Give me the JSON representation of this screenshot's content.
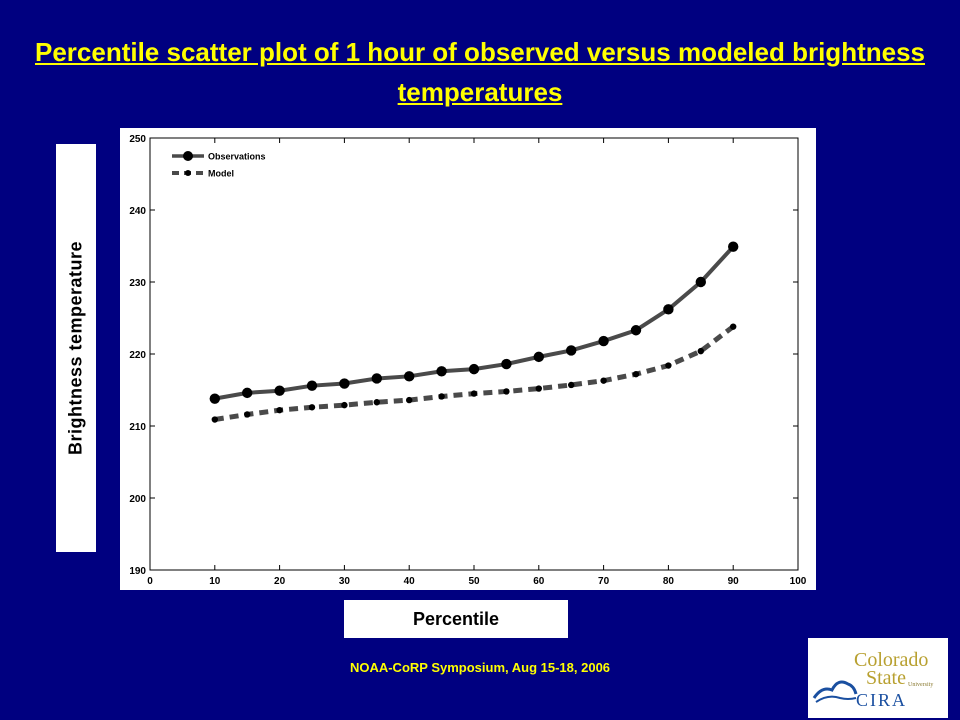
{
  "slide": {
    "title": "Percentile scatter plot of 1 hour of observed versus modeled brightness temperatures",
    "ylabel": "Brightness temperature",
    "xlabel": "Percentile",
    "footer": "NOAA-CoRP Symposium, Aug 15-18, 2006",
    "logo": {
      "colorado": "Colorado",
      "state": "State",
      "university": "University",
      "cira": "CIRA"
    }
  },
  "colors": {
    "background": "#000080",
    "title": "#ffff00",
    "footer": "#ffff00",
    "observations_line": "#4a4a4a",
    "model_line": "#4a4a4a",
    "markers": "#000000"
  },
  "chart_data": {
    "type": "line",
    "title": "",
    "xlabel": "",
    "ylabel": "",
    "xlim": [
      0,
      100
    ],
    "ylim": [
      190,
      250
    ],
    "xticks": [
      0,
      10,
      20,
      30,
      40,
      50,
      60,
      70,
      80,
      90,
      100
    ],
    "yticks": [
      190,
      200,
      210,
      220,
      230,
      240,
      250
    ],
    "grid": false,
    "legend_position": "top-left",
    "x": [
      10,
      15,
      20,
      25,
      30,
      35,
      40,
      45,
      50,
      55,
      60,
      65,
      70,
      75,
      80,
      85,
      90
    ],
    "series": [
      {
        "name": "Observations",
        "style": "solid",
        "values": [
          213.8,
          214.6,
          214.9,
          215.6,
          215.9,
          216.6,
          216.9,
          217.6,
          217.9,
          218.6,
          219.6,
          220.5,
          221.8,
          223.3,
          226.2,
          230.0,
          234.9
        ]
      },
      {
        "name": "Model",
        "style": "dashed",
        "values": [
          210.9,
          211.6,
          212.2,
          212.6,
          212.9,
          213.3,
          213.6,
          214.1,
          214.5,
          214.8,
          215.2,
          215.7,
          216.3,
          217.2,
          218.4,
          220.4,
          223.8
        ]
      }
    ]
  }
}
